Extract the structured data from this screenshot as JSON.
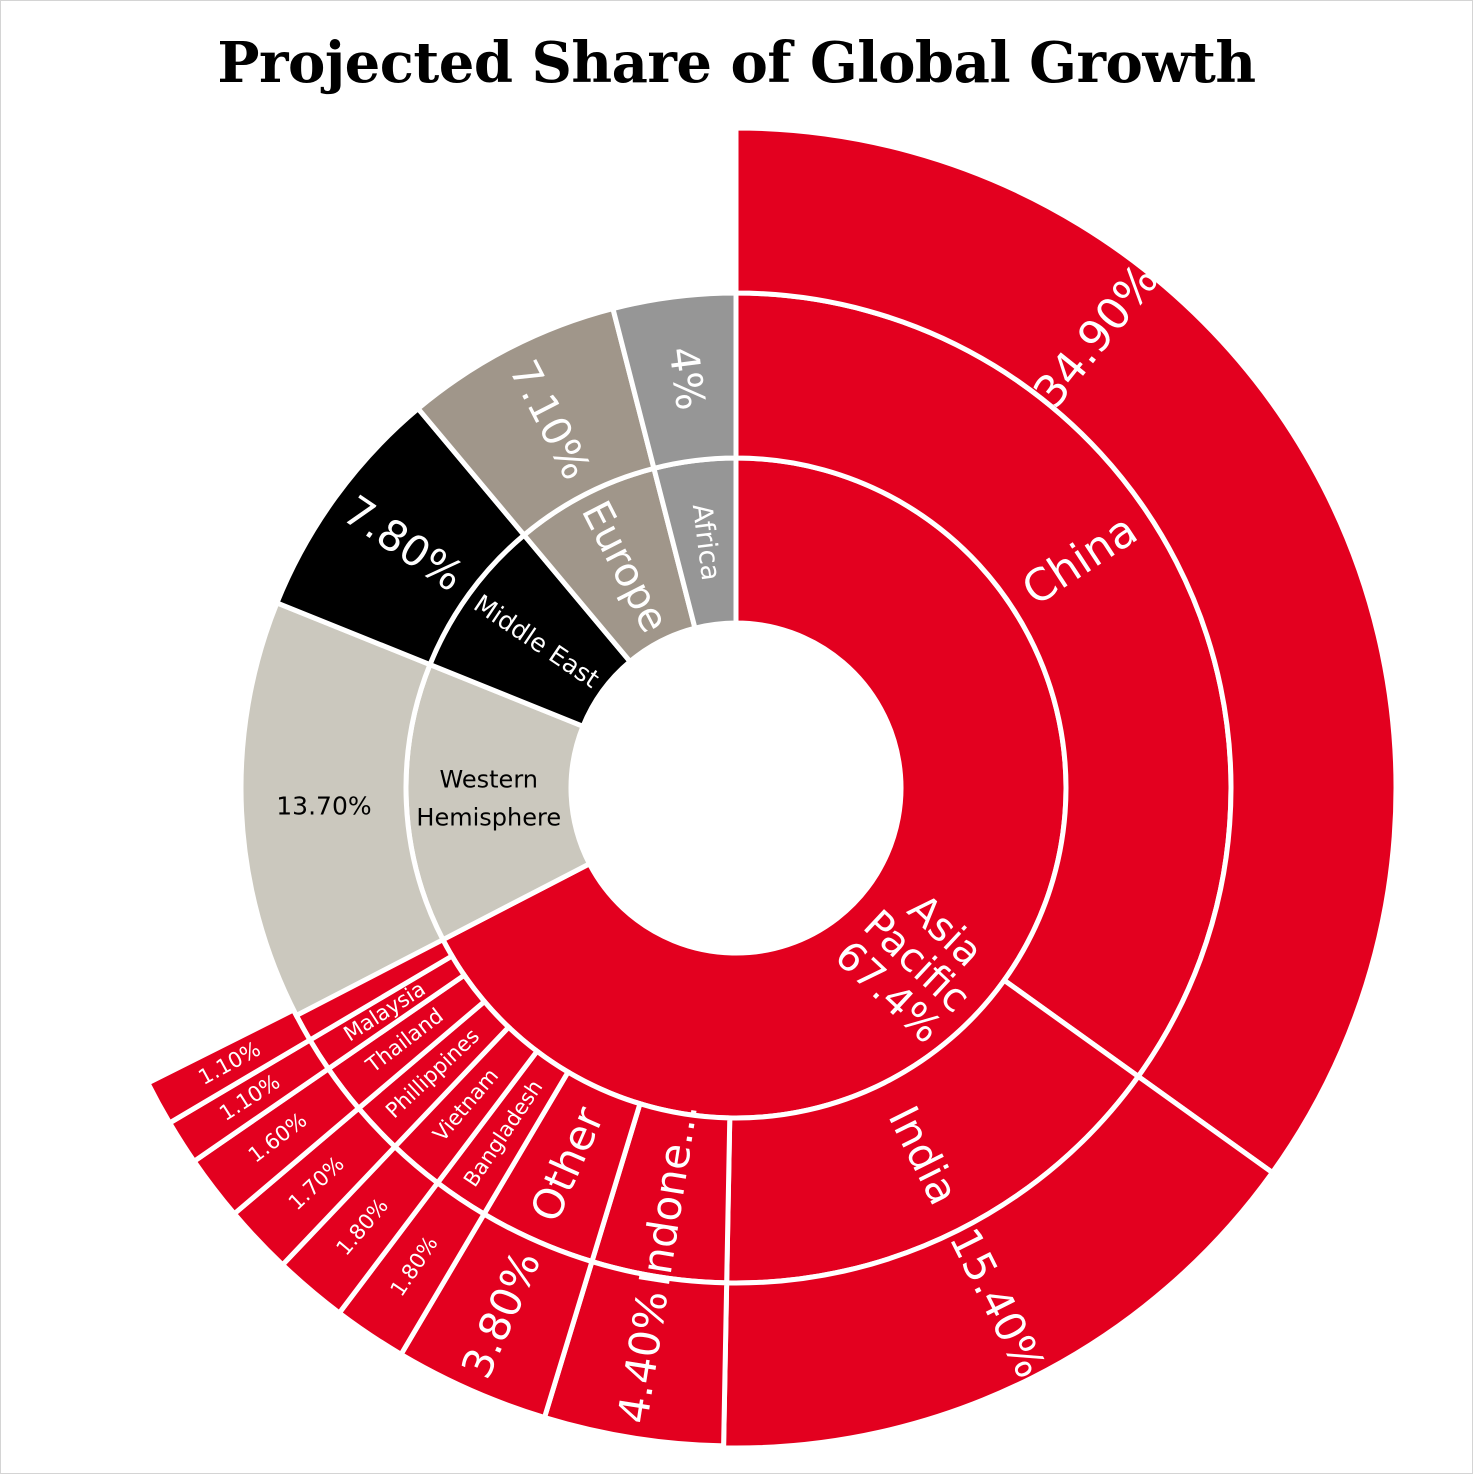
{
  "title": "Projected Share of Global Growth",
  "colors": {
    "red": "#e3001f",
    "black": "#000000",
    "taupe": "#a0968a",
    "grey": "#969696",
    "light": "#cbc8be",
    "white": "#ffffff"
  },
  "chart_data": {
    "type": "sunburst",
    "title": "Projected Share of Global Growth",
    "unit": "%",
    "regions": [
      {
        "name": "Asia Pacific",
        "label": "Asia Pacific 67.4%",
        "value": 67.4,
        "color": "red",
        "textColor": "white",
        "children": [
          {
            "name": "China",
            "value": 34.9,
            "valueLabel": "34.90%"
          },
          {
            "name": "India",
            "value": 15.4,
            "valueLabel": "15.40%"
          },
          {
            "name": "Indone...",
            "value": 4.4,
            "valueLabel": "4.40%"
          },
          {
            "name": "Other",
            "value": 3.8,
            "valueLabel": "3.80%"
          },
          {
            "name": "Bangladesh",
            "value": 1.8,
            "valueLabel": "1.80%"
          },
          {
            "name": "Vietnam",
            "value": 1.8,
            "valueLabel": "1.80%"
          },
          {
            "name": "Phillippines",
            "value": 1.7,
            "valueLabel": "1.70%"
          },
          {
            "name": "Thailand",
            "value": 1.6,
            "valueLabel": "1.60%"
          },
          {
            "name": "Malaysia",
            "value": 1.1,
            "valueLabel": "1.10%"
          },
          {
            "name": "",
            "value": 1.1,
            "valueLabel": "1.10%"
          }
        ]
      },
      {
        "name": "Western Hemisphere",
        "value": 13.7,
        "valueLabel": "13.70%",
        "color": "light",
        "textColor": "black"
      },
      {
        "name": "Middle East",
        "value": 7.8,
        "valueLabel": "7.80%",
        "color": "black",
        "textColor": "white"
      },
      {
        "name": "Europe",
        "value": 7.1,
        "valueLabel": "7.10%",
        "color": "taupe",
        "textColor": "white"
      },
      {
        "name": "Africa",
        "value": 4.0,
        "valueLabel": "4%",
        "color": "grey",
        "textColor": "white"
      }
    ]
  }
}
